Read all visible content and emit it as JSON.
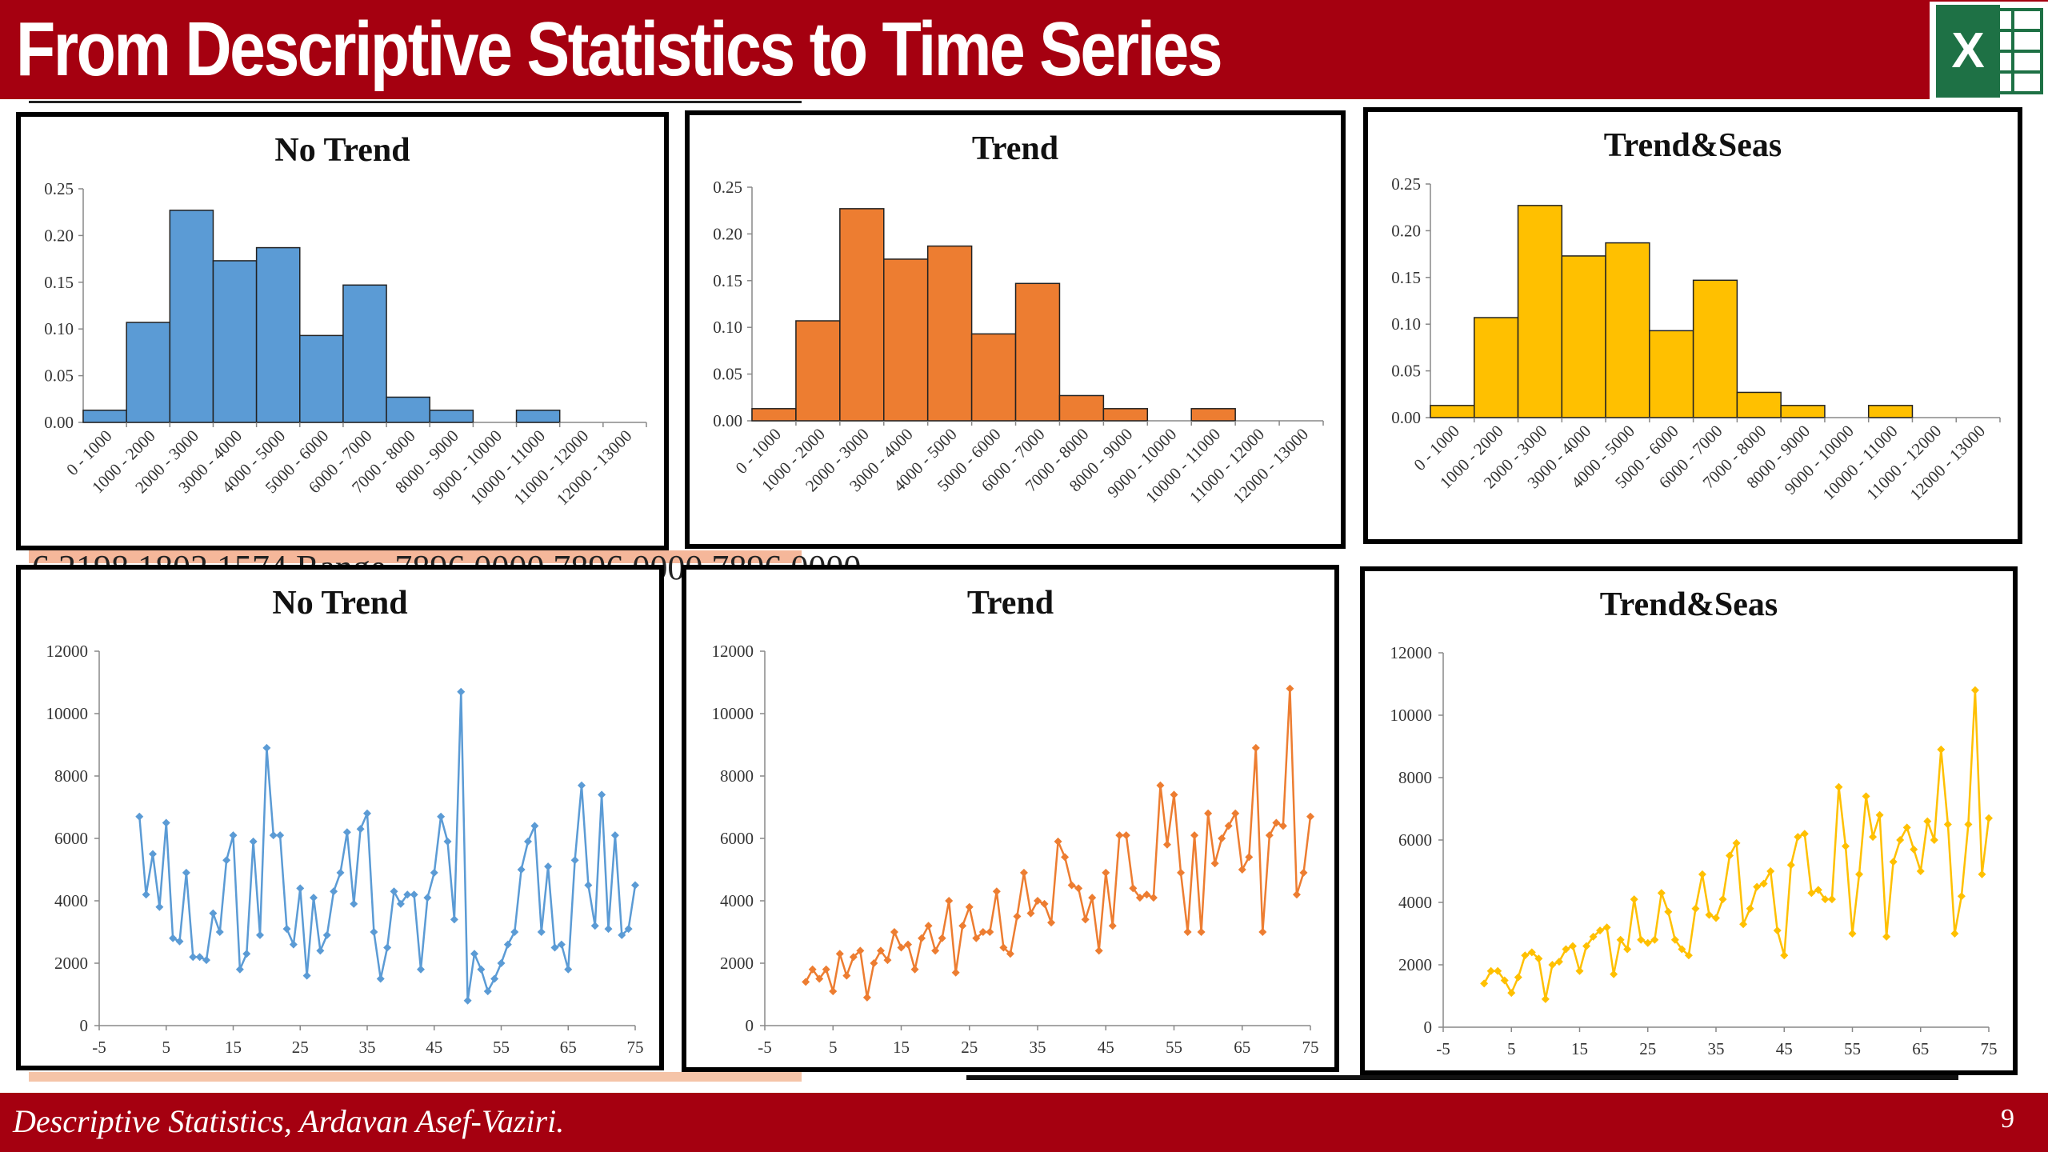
{
  "header": {
    "title": "From Descriptive Statistics to Time Series",
    "logo_letter": "X"
  },
  "footer": {
    "text": "Descriptive Statistics, Ardavan Asef-Vaziri.",
    "page_number": "9"
  },
  "background_fragments": "6          2198          1802          1574                              Range              7896.0000     7896.0000     7896.0000",
  "colors": {
    "brand": "#a50010",
    "excel_green": "#1e7145",
    "blue": "#5b9bd5",
    "orange": "#ed7d31",
    "gold": "#ffc000"
  },
  "chart_data": [
    {
      "type": "bar",
      "title": "No Trend",
      "color": "#5b9bd5",
      "categories": [
        "0 - 1000",
        "1000 - 2000",
        "2000 - 3000",
        "3000 - 4000",
        "4000 - 5000",
        "5000 - 6000",
        "6000 - 7000",
        "7000 - 8000",
        "8000 - 9000",
        "9000 - 10000",
        "10000 - 11000",
        "11000 - 12000",
        "12000 - 13000"
      ],
      "values": [
        0.013,
        0.107,
        0.227,
        0.173,
        0.187,
        0.093,
        0.147,
        0.027,
        0.013,
        0,
        0.013,
        0,
        0
      ],
      "ylim": [
        0,
        0.25
      ],
      "yticks": [
        "0.00",
        "0.05",
        "0.10",
        "0.15",
        "0.20",
        "0.25"
      ]
    },
    {
      "type": "bar",
      "title": "Trend",
      "color": "#ed7d31",
      "categories": [
        "0 - 1000",
        "1000 - 2000",
        "2000 - 3000",
        "3000 - 4000",
        "4000 - 5000",
        "5000 - 6000",
        "6000 - 7000",
        "7000 - 8000",
        "8000 - 9000",
        "9000 - 10000",
        "10000 - 11000",
        "11000 - 12000",
        "12000 - 13000"
      ],
      "values": [
        0.013,
        0.107,
        0.227,
        0.173,
        0.187,
        0.093,
        0.147,
        0.027,
        0.013,
        0,
        0.013,
        0,
        0
      ],
      "ylim": [
        0,
        0.25
      ],
      "yticks": [
        "0.00",
        "0.05",
        "0.10",
        "0.15",
        "0.20",
        "0.25"
      ]
    },
    {
      "type": "bar",
      "title": "Trend&Seas",
      "color": "#ffc000",
      "categories": [
        "0 - 1000",
        "1000 - 2000",
        "2000 - 3000",
        "3000 - 4000",
        "4000 - 5000",
        "5000 - 6000",
        "6000 - 7000",
        "7000 - 8000",
        "8000 - 9000",
        "9000 - 10000",
        "10000 - 11000",
        "11000 - 12000",
        "12000 - 13000"
      ],
      "values": [
        0.013,
        0.107,
        0.227,
        0.173,
        0.187,
        0.093,
        0.147,
        0.027,
        0.013,
        0,
        0.013,
        0,
        0
      ],
      "ylim": [
        0,
        0.25
      ],
      "yticks": [
        "0.00",
        "0.05",
        "0.10",
        "0.15",
        "0.20",
        "0.25"
      ]
    },
    {
      "type": "line",
      "title": "No Trend",
      "color": "#5b9bd5",
      "xlim": [
        -5,
        75
      ],
      "ylim": [
        0,
        12000
      ],
      "xticks": [
        "-5",
        "5",
        "15",
        "25",
        "35",
        "45",
        "55",
        "65",
        "75"
      ],
      "yticks": [
        "0",
        "2000",
        "4000",
        "6000",
        "8000",
        "10000",
        "12000"
      ],
      "x": [
        1,
        2,
        3,
        4,
        5,
        6,
        7,
        8,
        9,
        10,
        11,
        12,
        13,
        14,
        15,
        16,
        17,
        18,
        19,
        20,
        21,
        22,
        23,
        24,
        25,
        26,
        27,
        28,
        29,
        30,
        31,
        32,
        33,
        34,
        35,
        36,
        37,
        38,
        39,
        40,
        41,
        42,
        43,
        44,
        45,
        46,
        47,
        48,
        49,
        50,
        51,
        52,
        53,
        54,
        55,
        56,
        57,
        58,
        59,
        60,
        61,
        62,
        63,
        64,
        65,
        66,
        67,
        68,
        69,
        70,
        71,
        72,
        73,
        74,
        75
      ],
      "y": [
        6700,
        4200,
        5500,
        3800,
        6500,
        2800,
        2700,
        4900,
        2200,
        2200,
        2100,
        3600,
        3000,
        5300,
        6100,
        1800,
        2300,
        5900,
        2900,
        8900,
        6100,
        6100,
        3100,
        2600,
        4400,
        1600,
        4100,
        2400,
        2900,
        4300,
        4900,
        6200,
        3900,
        6300,
        6800,
        3000,
        1500,
        2500,
        4300,
        3900,
        4200,
        4200,
        1800,
        4100,
        4900,
        6700,
        5900,
        3400,
        10700,
        800,
        2300,
        1800,
        1100,
        1500,
        2000,
        2600,
        3000,
        5000,
        5900,
        6400,
        3000,
        5100,
        2500,
        2600,
        1800,
        5300,
        7700,
        4500,
        3200,
        7400,
        3100,
        6100,
        2900,
        3100,
        4500
      ]
    },
    {
      "type": "line",
      "title": "Trend",
      "color": "#ed7d31",
      "xlim": [
        -5,
        75
      ],
      "ylim": [
        0,
        12000
      ],
      "xticks": [
        "-5",
        "5",
        "15",
        "25",
        "35",
        "45",
        "55",
        "65",
        "75"
      ],
      "yticks": [
        "0",
        "2000",
        "4000",
        "6000",
        "8000",
        "10000",
        "12000"
      ],
      "x": [
        1,
        2,
        3,
        4,
        5,
        6,
        7,
        8,
        9,
        10,
        11,
        12,
        13,
        14,
        15,
        16,
        17,
        18,
        19,
        20,
        21,
        22,
        23,
        24,
        25,
        26,
        27,
        28,
        29,
        30,
        31,
        32,
        33,
        34,
        35,
        36,
        37,
        38,
        39,
        40,
        41,
        42,
        43,
        44,
        45,
        46,
        47,
        48,
        49,
        50,
        51,
        52,
        53,
        54,
        55,
        56,
        57,
        58,
        59,
        60,
        61,
        62,
        63,
        64,
        65,
        66,
        67,
        68,
        69,
        70,
        71,
        72,
        73,
        74,
        75
      ],
      "y": [
        1400,
        1800,
        1500,
        1800,
        1100,
        2300,
        1600,
        2200,
        2400,
        900,
        2000,
        2400,
        2100,
        3000,
        2500,
        2600,
        1800,
        2800,
        3200,
        2400,
        2800,
        4000,
        1700,
        3200,
        3800,
        2800,
        3000,
        3000,
        4300,
        2500,
        2300,
        3500,
        4900,
        3600,
        4000,
        3900,
        3300,
        5900,
        5400,
        4500,
        4400,
        3400,
        4100,
        2400,
        4900,
        3200,
        6100,
        6100,
        4400,
        4100,
        4200,
        4100,
        7700,
        5800,
        7400,
        4900,
        3000,
        6100,
        3000,
        6800,
        5200,
        6000,
        6400,
        6800,
        5000,
        5400,
        8900,
        3000,
        6100,
        6500,
        6400,
        10800,
        4200,
        4900,
        6700
      ]
    },
    {
      "type": "line",
      "title": "Trend&Seas",
      "color": "#ffc000",
      "xlim": [
        -5,
        75
      ],
      "ylim": [
        0,
        12000
      ],
      "xticks": [
        "-5",
        "5",
        "15",
        "25",
        "35",
        "45",
        "55",
        "65",
        "75"
      ],
      "yticks": [
        "0",
        "2000",
        "4000",
        "6000",
        "8000",
        "10000",
        "12000"
      ],
      "x": [
        1,
        2,
        3,
        4,
        5,
        6,
        7,
        8,
        9,
        10,
        11,
        12,
        13,
        14,
        15,
        16,
        17,
        18,
        19,
        20,
        21,
        22,
        23,
        24,
        25,
        26,
        27,
        28,
        29,
        30,
        31,
        32,
        33,
        34,
        35,
        36,
        37,
        38,
        39,
        40,
        41,
        42,
        43,
        44,
        45,
        46,
        47,
        48,
        49,
        50,
        51,
        52,
        53,
        54,
        55,
        56,
        57,
        58,
        59,
        60,
        61,
        62,
        63,
        64,
        65,
        66,
        67,
        68,
        69,
        70,
        71,
        72,
        73,
        74,
        75
      ],
      "y": [
        1400,
        1800,
        1800,
        1500,
        1100,
        1600,
        2300,
        2400,
        2200,
        900,
        2000,
        2100,
        2500,
        2600,
        1800,
        2600,
        2900,
        3100,
        3200,
        1700,
        2800,
        2500,
        4100,
        2800,
        2700,
        2800,
        4300,
        3700,
        2800,
        2500,
        2300,
        3800,
        4900,
        3600,
        3500,
        4100,
        5500,
        5900,
        3300,
        3800,
        4500,
        4600,
        5000,
        3100,
        2300,
        5200,
        6100,
        6200,
        4300,
        4400,
        4100,
        4100,
        7700,
        5800,
        3000,
        4900,
        7400,
        6100,
        6800,
        2900,
        5300,
        6000,
        6400,
        5700,
        5000,
        6600,
        6000,
        8900,
        6500,
        3000,
        4200,
        6500,
        10800,
        4900,
        6700
      ]
    }
  ]
}
